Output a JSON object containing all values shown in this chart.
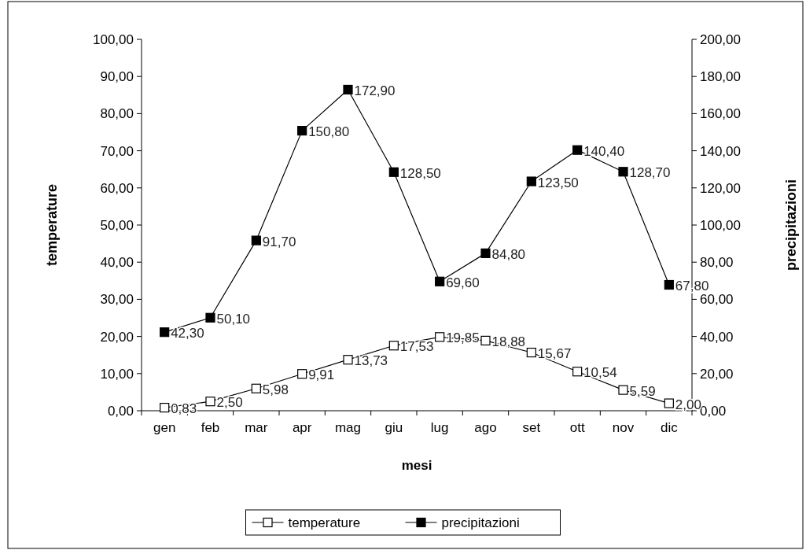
{
  "chart_data": {
    "type": "line",
    "xlabel": "mesi",
    "ylabel": "temperature",
    "y2label": "precipitazioni",
    "categories": [
      "gen",
      "feb",
      "mar",
      "apr",
      "mag",
      "giu",
      "lug",
      "ago",
      "set",
      "ott",
      "nov",
      "dic"
    ],
    "series": [
      {
        "name": "temperature",
        "color": "#000000",
        "values": [
          0.83,
          2.5,
          5.98,
          9.91,
          13.73,
          17.53,
          19.85,
          18.88,
          15.67,
          10.54,
          5.59,
          2.0
        ],
        "value_labels": [
          "0,83",
          "2,50",
          "5,98",
          "9,91",
          "13,73",
          "17,53",
          "19,85",
          "18,88",
          "15,67",
          "10,54",
          "5,59",
          "2,00"
        ]
      },
      {
        "name": "precipitazioni",
        "color": "#000000",
        "axis": "y2",
        "values": [
          42.3,
          50.1,
          91.7,
          150.8,
          172.9,
          128.5,
          69.6,
          84.8,
          123.5,
          140.4,
          128.7,
          67.8
        ],
        "value_labels": [
          "42,30",
          "50,10",
          "91,70",
          "150,80",
          "172,90",
          "128,50",
          "69,60",
          "84,80",
          "123,50",
          "140,40",
          "128,70",
          "67,80"
        ]
      }
    ],
    "ylim": [
      0,
      100
    ],
    "yticks": [
      {
        "value": 0,
        "label": "0,00"
      },
      {
        "value": 10,
        "label": "10,00"
      },
      {
        "value": 20,
        "label": "20,00"
      },
      {
        "value": 30,
        "label": "30,00"
      },
      {
        "value": 40,
        "label": "40,00"
      },
      {
        "value": 50,
        "label": "50,00"
      },
      {
        "value": 60,
        "label": "60,00"
      },
      {
        "value": 70,
        "label": "70,00"
      },
      {
        "value": 80,
        "label": "80,00"
      },
      {
        "value": 90,
        "label": "90,00"
      },
      {
        "value": 100,
        "label": "100,00"
      }
    ],
    "y2lim": [
      0,
      200
    ],
    "y2ticks": [
      {
        "value": 0,
        "label": "0,00"
      },
      {
        "value": 20,
        "label": "20,00"
      },
      {
        "value": 40,
        "label": "40,00"
      },
      {
        "value": 60,
        "label": "60,00"
      },
      {
        "value": 80,
        "label": "80,00"
      },
      {
        "value": 100,
        "label": "100,00"
      },
      {
        "value": 120,
        "label": "120,00"
      },
      {
        "value": 140,
        "label": "140,00"
      },
      {
        "value": 160,
        "label": "160,00"
      },
      {
        "value": 180,
        "label": "180,00"
      },
      {
        "value": 200,
        "label": "200,00"
      }
    ],
    "legend": "bottom",
    "marker": "square",
    "grid": false
  }
}
